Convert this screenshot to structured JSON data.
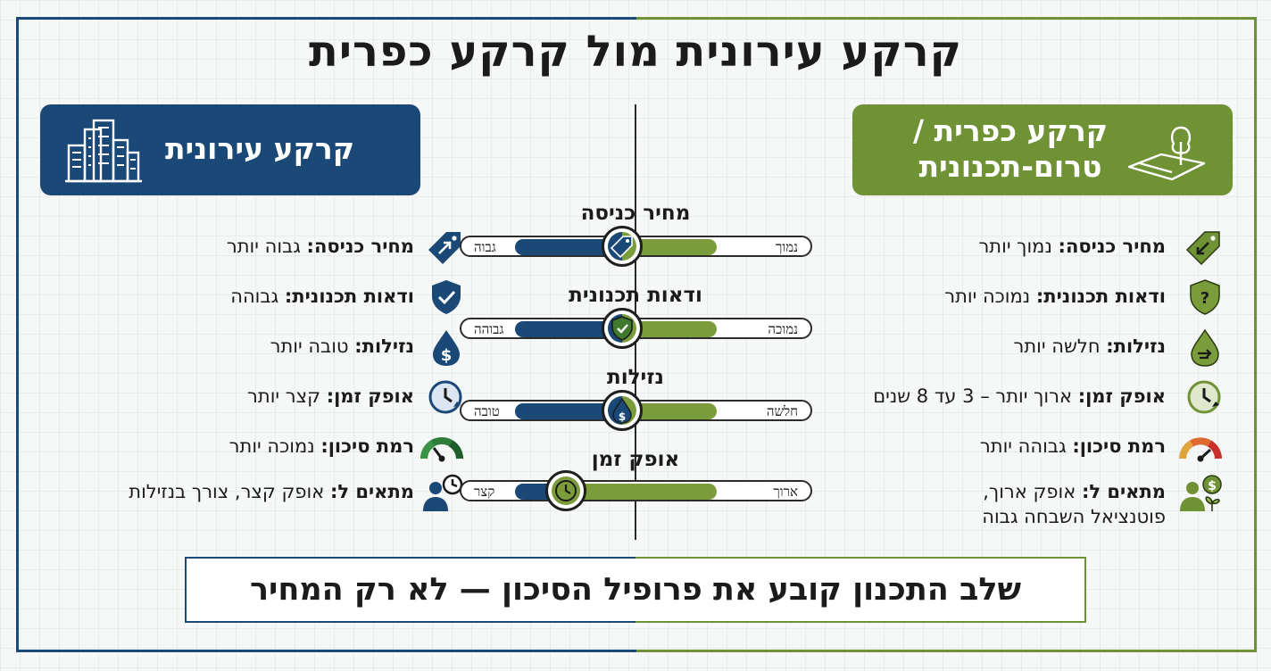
{
  "title": "קרקע עירונית מול קרקע כפרית",
  "colors": {
    "urban": "#1a4877",
    "rural": "#6f9234"
  },
  "urban": {
    "header": "קרקע עירונית",
    "header_icon": "city-buildings-icon",
    "items": [
      {
        "label": "מחיר כניסה:",
        "value": "גבוה יותר",
        "icon": "price-tag-up-icon"
      },
      {
        "label": "ודאות תכנונית:",
        "value": "גבוהה",
        "icon": "shield-check-icon"
      },
      {
        "label": "נזילות:",
        "value": "טובה יותר",
        "icon": "water-drop-dollar-icon"
      },
      {
        "label": "אופק זמן:",
        "value": "קצר יותר",
        "icon": "clock-icon"
      },
      {
        "label": "רמת סיכון:",
        "value": "נמוכה יותר",
        "icon": "gauge-low-icon"
      },
      {
        "label": "מתאים ל:",
        "value": "אופק קצר, צורך בנזילות",
        "icon": "person-clock-icon"
      }
    ]
  },
  "rural": {
    "header_line1": "קרקע כפרית /",
    "header_line2": "טרום-תכנונית",
    "header_icon": "tree-land-icon",
    "items": [
      {
        "label": "מחיר כניסה:",
        "value": "נמוך יותר",
        "icon": "price-tag-down-icon"
      },
      {
        "label": "ודאות תכנונית:",
        "value": "נמוכה יותר",
        "icon": "shield-question-icon"
      },
      {
        "label": "נזילות:",
        "value": "חלשה יותר",
        "icon": "water-drop-arrow-icon"
      },
      {
        "label": "אופק זמן:",
        "value": "ארוך יותר – 3 עד 8 שנים",
        "icon": "clock-icon"
      },
      {
        "label": "רמת סיכון:",
        "value": "גבוהה יותר",
        "icon": "gauge-high-icon"
      },
      {
        "label": "מתאים ל:",
        "value": "אופק ארוך,",
        "value2": "פוטנציאל השבחה גבוה",
        "icon": "person-money-plant-icon"
      }
    ]
  },
  "scales": [
    {
      "title": "מחיר כניסה",
      "urban_label": "גבוה",
      "rural_label": "נמוך",
      "urban_level": 0.46,
      "rural_level": 0.54,
      "icon": "price-tag-icon"
    },
    {
      "title": "ודאות תכנונית",
      "urban_label": "גבוהה",
      "rural_label": "נמוכה",
      "urban_level": 0.46,
      "rural_level": 0.54,
      "icon": "shield-check-icon"
    },
    {
      "title": "נזילות",
      "urban_label": "טובה",
      "rural_label": "חלשה",
      "urban_level": 0.46,
      "rural_level": 0.54,
      "icon": "water-drop-dollar-icon"
    },
    {
      "title": "אופק זמן",
      "urban_label": "קצר",
      "rural_label": "ארוך",
      "urban_level": 0.3,
      "rural_level": 0.7,
      "icon": "clock-icon"
    }
  ],
  "footer": "שלב התכנון קובע את פרופיל הסיכון — לא רק המחיר"
}
